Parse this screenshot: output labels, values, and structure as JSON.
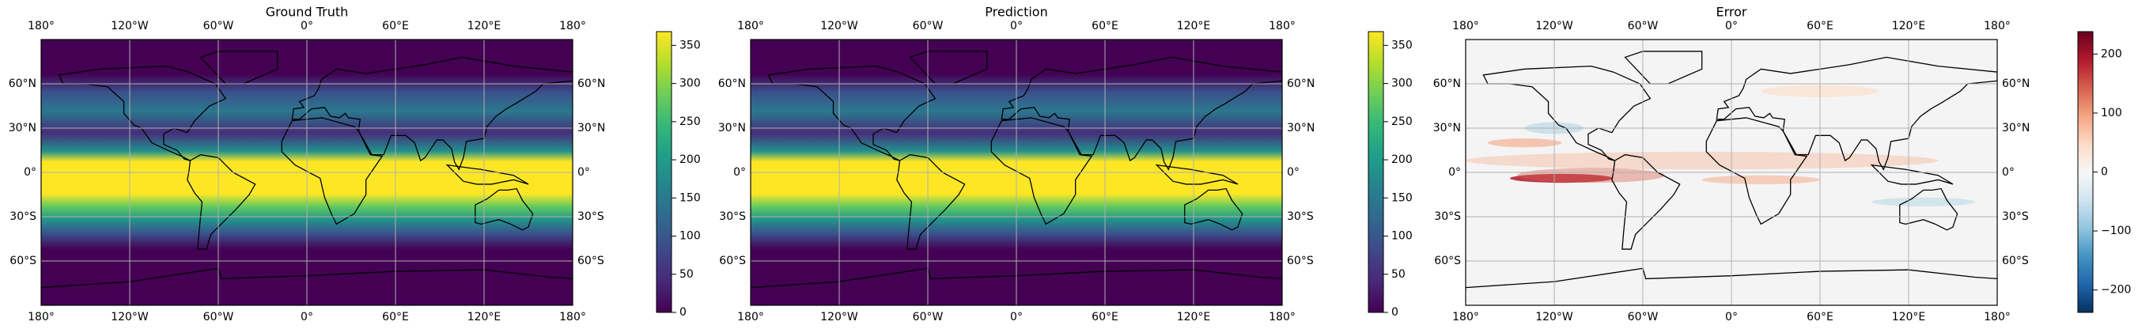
{
  "chart_data": [
    {
      "type": "map",
      "title": "Ground Truth",
      "xlim": [
        -180,
        180
      ],
      "xticks": [
        {
          "value": -180,
          "label": "180°"
        },
        {
          "value": -120,
          "label": "120°W"
        },
        {
          "value": -60,
          "label": "60°W"
        },
        {
          "value": 0,
          "label": "0°"
        },
        {
          "value": 60,
          "label": "60°E"
        },
        {
          "value": 120,
          "label": "120°E"
        },
        {
          "value": 180,
          "label": "180°"
        }
      ],
      "ylim": [
        -90,
        90
      ],
      "yticks": [
        {
          "value": 60,
          "label": "60°N"
        },
        {
          "value": 30,
          "label": "30°N"
        },
        {
          "value": 0,
          "label": "0°"
        },
        {
          "value": -30,
          "label": "30°S"
        },
        {
          "value": -60,
          "label": "60°S"
        }
      ],
      "grid": true,
      "colorbar": {
        "ylim": [
          0,
          368
        ],
        "yticks": [
          0,
          50,
          100,
          150,
          200,
          250,
          300,
          350
        ],
        "colormap": [
          "#440154",
          "#482878",
          "#3e4989",
          "#31688e",
          "#26828e",
          "#1f9e89",
          "#35b779",
          "#6ece58",
          "#b5de2b",
          "#fde725"
        ]
      }
    },
    {
      "type": "map",
      "title": "Prediction",
      "xlim": [
        -180,
        180
      ],
      "xticks": [
        {
          "value": -180,
          "label": "180°"
        },
        {
          "value": -120,
          "label": "120°W"
        },
        {
          "value": -60,
          "label": "60°W"
        },
        {
          "value": 0,
          "label": "0°"
        },
        {
          "value": 60,
          "label": "60°E"
        },
        {
          "value": 120,
          "label": "120°E"
        },
        {
          "value": 180,
          "label": "180°"
        }
      ],
      "ylim": [
        -90,
        90
      ],
      "yticks": [
        {
          "value": 60,
          "label": "60°N"
        },
        {
          "value": 30,
          "label": "30°N"
        },
        {
          "value": 0,
          "label": "0°"
        },
        {
          "value": -30,
          "label": "30°S"
        },
        {
          "value": -60,
          "label": "60°S"
        }
      ],
      "grid": true,
      "colorbar": {
        "ylim": [
          0,
          368
        ],
        "yticks": [
          0,
          50,
          100,
          150,
          200,
          250,
          300,
          350
        ],
        "colormap": [
          "#440154",
          "#482878",
          "#3e4989",
          "#31688e",
          "#26828e",
          "#1f9e89",
          "#35b779",
          "#6ece58",
          "#b5de2b",
          "#fde725"
        ]
      }
    },
    {
      "type": "map",
      "title": "Error",
      "xlim": [
        -180,
        180
      ],
      "xticks": [
        {
          "value": -180,
          "label": "180°"
        },
        {
          "value": -120,
          "label": "120°W"
        },
        {
          "value": -60,
          "label": "60°W"
        },
        {
          "value": 0,
          "label": "0°"
        },
        {
          "value": 60,
          "label": "60°E"
        },
        {
          "value": 120,
          "label": "120°E"
        },
        {
          "value": 180,
          "label": "180°"
        }
      ],
      "ylim": [
        -90,
        90
      ],
      "yticks": [
        {
          "value": 60,
          "label": "60°N"
        },
        {
          "value": 30,
          "label": "30°N"
        },
        {
          "value": 0,
          "label": "0°"
        },
        {
          "value": -30,
          "label": "30°S"
        },
        {
          "value": -60,
          "label": "60°S"
        }
      ],
      "grid": true,
      "colorbar": {
        "ylim": [
          -238,
          238
        ],
        "yticks": [
          {
            "value": -200,
            "label": "−200"
          },
          {
            "value": -100,
            "label": "−100"
          },
          0,
          100,
          200
        ],
        "colormap": [
          "#053061",
          "#2166ac",
          "#4393c3",
          "#92c5de",
          "#d1e5f0",
          "#f7f7f7",
          "#fddbc7",
          "#f4a582",
          "#d6604d",
          "#b2182b",
          "#67001f"
        ]
      }
    }
  ]
}
